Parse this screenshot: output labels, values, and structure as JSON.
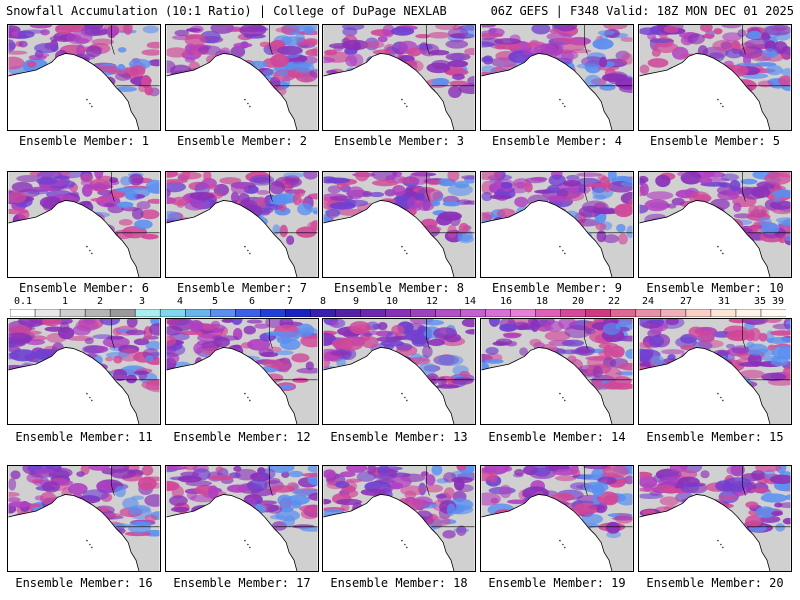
{
  "header": {
    "left": "Snowfall Accumulation (10:1 Ratio) | College of DuPage NEXLAB",
    "right": "06Z GEFS | F348 Valid: 18Z MON DEC 01 2025"
  },
  "caption_prefix": "Ensemble Member:",
  "members": [
    "1",
    "2",
    "3",
    "4",
    "5",
    "6",
    "7",
    "8",
    "9",
    "10",
    "11",
    "12",
    "13",
    "14",
    "15",
    "16",
    "17",
    "18",
    "19",
    "20"
  ],
  "colorbar": {
    "labels": [
      "0.1",
      "1",
      "2",
      "3",
      "4",
      "5",
      "6",
      "7",
      "8",
      "9",
      "10",
      "12",
      "14",
      "16",
      "18",
      "20",
      "22",
      "24",
      "27",
      "31",
      "35",
      "39"
    ],
    "colors": [
      "#ffffff",
      "#e8e8e8",
      "#cfcfcf",
      "#b5b5b5",
      "#9a9a9a",
      "#a8f0f0",
      "#80d8f0",
      "#6ab4ee",
      "#5a8ff0",
      "#3c60e8",
      "#2240d8",
      "#1a22c0",
      "#3a20b0",
      "#5420a8",
      "#6e28b0",
      "#8a30b8",
      "#9e40c0",
      "#b250c8",
      "#c460d0",
      "#d870d8",
      "#e880d8",
      "#e060b8",
      "#d84898",
      "#d03880",
      "#e06890",
      "#e890a8",
      "#f0b0b8",
      "#f8d0c8",
      "#fce6d8",
      "#fff4e8",
      "#fffaf4"
    ]
  },
  "colors": {
    "land_snow_light": "#d0d0d0",
    "land_snow_blue": "#5a8ff0",
    "land_snow_purple": "#8a30b8",
    "land_snow_magenta": "#d04898",
    "border": "#000000"
  }
}
